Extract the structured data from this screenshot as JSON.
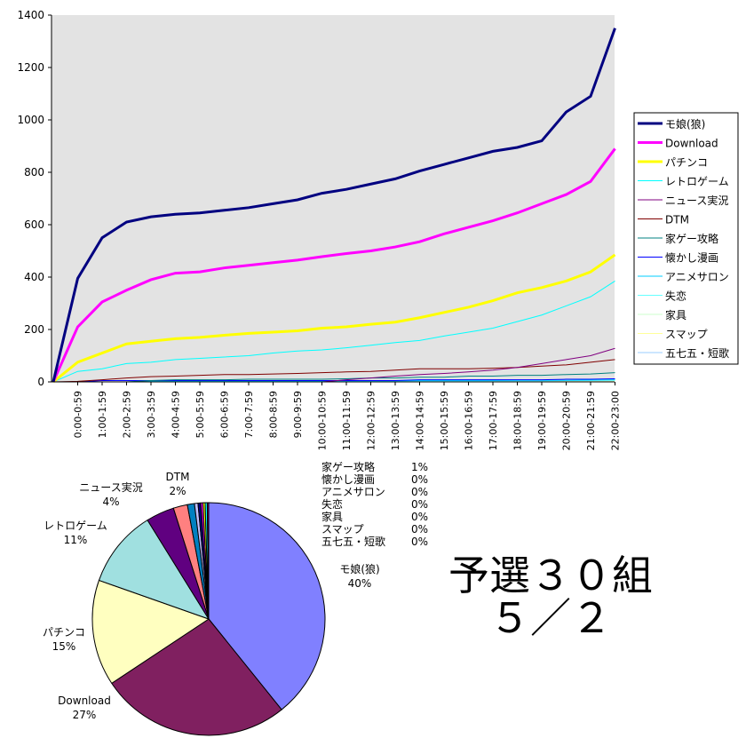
{
  "chart_data": [
    {
      "type": "line",
      "title": "",
      "xlabel": "",
      "ylabel": "",
      "ylim": [
        0,
        1400
      ],
      "yticks": [
        "0",
        "200",
        "400",
        "600",
        "800",
        "1000",
        "1200",
        "1400"
      ],
      "grid": false,
      "legend_position": "right",
      "categories": [
        "0:00-0:59",
        "1:00-1:59",
        "2:00-2:59",
        "3:00-3:59",
        "4:00-4:59",
        "5:00-5:59",
        "6:00-6:59",
        "7:00-7:59",
        "8:00-8:59",
        "9:00-9:59",
        "10:00-10:59",
        "11:00-11:59",
        "12:00-12:59",
        "13:00-13:59",
        "14:00-14:59",
        "15:00-15:59",
        "16:00-16:59",
        "17:00-17:59",
        "18:00-18:59",
        "19:00-19:59",
        "20:00-20:59",
        "21:00-21:59",
        "22:00-23:00"
      ],
      "series": [
        {
          "name": "モ娘(狼)",
          "color": "#000080",
          "values": [
            395,
            550,
            610,
            630,
            640,
            645,
            655,
            665,
            680,
            695,
            720,
            735,
            755,
            775,
            805,
            830,
            855,
            880,
            895,
            920,
            1030,
            1090,
            1350
          ]
        },
        {
          "name": "Download",
          "color": "#FF00FF",
          "values": [
            210,
            305,
            350,
            390,
            415,
            420,
            435,
            445,
            455,
            465,
            478,
            490,
            500,
            515,
            535,
            565,
            590,
            615,
            645,
            680,
            715,
            765,
            890
          ]
        },
        {
          "name": "パチンコ",
          "color": "#FFFF00",
          "values": [
            75,
            110,
            145,
            155,
            165,
            170,
            178,
            185,
            190,
            195,
            205,
            210,
            220,
            228,
            245,
            265,
            285,
            310,
            340,
            360,
            385,
            420,
            485
          ]
        },
        {
          "name": "レトロゲーム",
          "color": "#00FFFF",
          "values": [
            40,
            50,
            70,
            75,
            85,
            90,
            95,
            100,
            110,
            118,
            122,
            130,
            140,
            150,
            158,
            175,
            190,
            205,
            230,
            255,
            290,
            325,
            385
          ]
        },
        {
          "name": "ニュース実況",
          "color": "#800080",
          "values": [
            0,
            0,
            0,
            0,
            0,
            0,
            0,
            0,
            0,
            0,
            0,
            8,
            15,
            22,
            28,
            32,
            38,
            45,
            55,
            70,
            85,
            100,
            128
          ]
        },
        {
          "name": "DTM",
          "color": "#800000",
          "values": [
            2,
            8,
            15,
            20,
            22,
            25,
            28,
            28,
            30,
            32,
            35,
            38,
            40,
            45,
            50,
            50,
            50,
            52,
            55,
            60,
            65,
            75,
            85
          ]
        },
        {
          "name": "家ゲー攻略",
          "color": "#008080",
          "values": [
            0,
            0,
            0,
            5,
            8,
            8,
            8,
            10,
            10,
            10,
            10,
            12,
            15,
            15,
            18,
            18,
            22,
            22,
            25,
            25,
            28,
            30,
            35
          ]
        },
        {
          "name": "懐かし漫画",
          "color": "#0000FF",
          "values": [
            0,
            5,
            5,
            5,
            5,
            5,
            5,
            5,
            5,
            5,
            5,
            5,
            5,
            5,
            8,
            8,
            8,
            8,
            8,
            8,
            10,
            10,
            12
          ]
        },
        {
          "name": "アニメサロン",
          "color": "#00CCFF",
          "values": [
            0,
            0,
            0,
            2,
            2,
            2,
            2,
            3,
            3,
            3,
            3,
            4,
            4,
            4,
            5,
            5,
            5,
            5,
            6,
            6,
            6,
            7,
            8
          ]
        },
        {
          "name": "失恋",
          "color": "#66FFFF",
          "values": [
            0,
            0,
            0,
            0,
            1,
            1,
            1,
            1,
            1,
            2,
            2,
            2,
            2,
            3,
            3,
            3,
            3,
            4,
            4,
            4,
            5,
            5,
            6
          ]
        },
        {
          "name": "家具",
          "color": "#CCFFCC",
          "values": [
            0,
            0,
            0,
            0,
            0,
            1,
            1,
            1,
            1,
            1,
            2,
            2,
            2,
            2,
            3,
            3,
            3,
            3,
            3,
            4,
            4,
            4,
            5
          ]
        },
        {
          "name": "スマップ",
          "color": "#FFFF99",
          "values": [
            0,
            0,
            0,
            0,
            0,
            0,
            1,
            1,
            1,
            1,
            1,
            1,
            2,
            2,
            2,
            2,
            2,
            3,
            3,
            3,
            3,
            4,
            4
          ]
        },
        {
          "name": "五七五・短歌",
          "color": "#99CCFF",
          "values": [
            0,
            0,
            0,
            0,
            0,
            0,
            0,
            1,
            1,
            1,
            1,
            1,
            1,
            2,
            2,
            2,
            2,
            2,
            2,
            3,
            3,
            3,
            3
          ]
        }
      ]
    },
    {
      "type": "pie",
      "slices": [
        {
          "name": "モ娘(狼)",
          "value": 40,
          "label": "40%",
          "color": "#8080FF"
        },
        {
          "name": "Download",
          "value": 27,
          "label": "27%",
          "color": "#802060"
        },
        {
          "name": "パチンコ",
          "value": 15,
          "label": "15%",
          "color": "#FFFFC0"
        },
        {
          "name": "レトロゲーム",
          "value": 11,
          "label": "11%",
          "color": "#A0E0E0"
        },
        {
          "name": "ニュース実況",
          "value": 4,
          "label": "4%",
          "color": "#600080"
        },
        {
          "name": "DTM",
          "value": 2,
          "label": "2%",
          "color": "#FF8080"
        },
        {
          "name": "家ゲー攻略",
          "value": 1,
          "label": "1%",
          "color": "#0080C0"
        },
        {
          "name": "懐かし漫画",
          "value": 0.5,
          "label": "0%",
          "color": "#C0C0FF"
        },
        {
          "name": "アニメサロン",
          "value": 0.4,
          "label": "0%",
          "color": "#000080"
        },
        {
          "name": "失恋",
          "value": 0.3,
          "label": "0%",
          "color": "#FF00FF"
        },
        {
          "name": "家具",
          "value": 0.3,
          "label": "0%",
          "color": "#FFFF00"
        },
        {
          "name": "スマップ",
          "value": 0.3,
          "label": "0%",
          "color": "#00FFFF"
        },
        {
          "name": "五七五・短歌",
          "value": 0.2,
          "label": "0%",
          "color": "#800080"
        }
      ]
    }
  ],
  "heading": {
    "line1": "予選３０組",
    "line2": "５／２"
  }
}
